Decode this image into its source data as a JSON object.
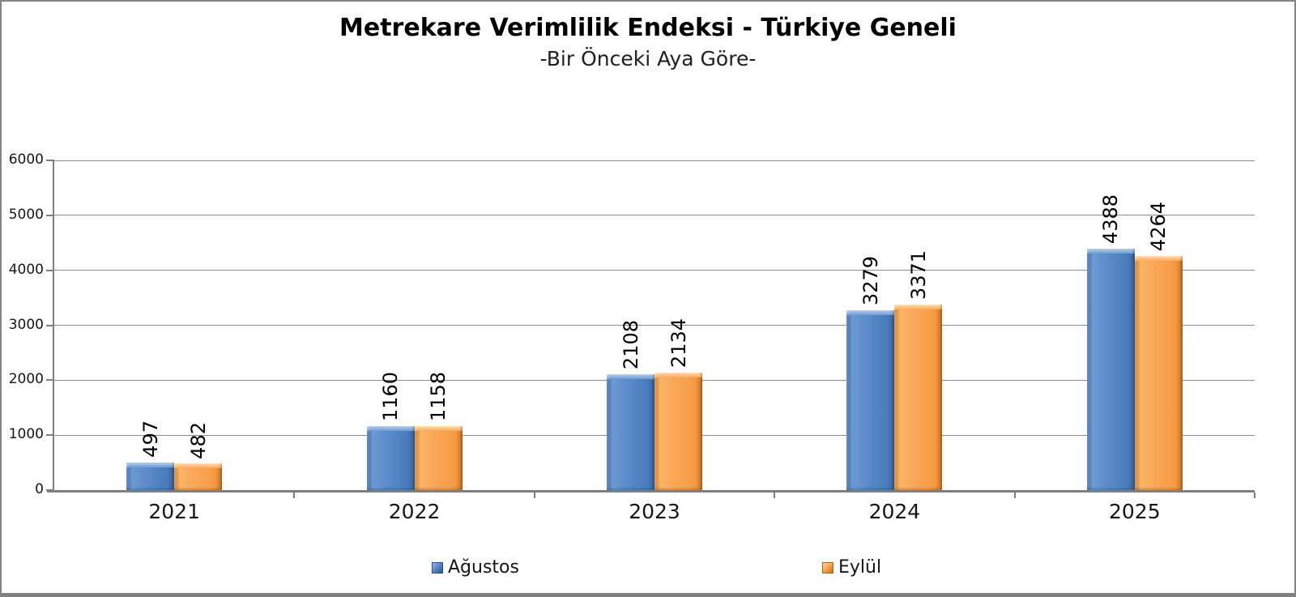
{
  "chart_data": {
    "type": "bar",
    "title": "Metrekare Verimlilik Endeksi - Türkiye Geneli",
    "subtitle": "-Bir Önceki Aya Göre-",
    "categories": [
      "2021",
      "2022",
      "2023",
      "2024",
      "2025"
    ],
    "series": [
      {
        "name": "Ağustos",
        "color": "#5585C5",
        "values": [
          497,
          1160,
          2108,
          3279,
          4388
        ]
      },
      {
        "name": "Eylül",
        "color": "#F9A24C",
        "values": [
          482,
          1158,
          2134,
          3371,
          4264
        ]
      }
    ],
    "xlabel": "",
    "ylabel": "",
    "ylim": [
      0,
      6000
    ],
    "ytick_step": 1000,
    "yticks": [
      "0",
      "1000",
      "2000",
      "3000",
      "4000",
      "5000",
      "6000"
    ],
    "grid": true,
    "legend_position": "bottom",
    "value_label_style": "rotated-90-bottom-to-top",
    "colors": {
      "gridline": "#8C8C8C",
      "axis": "#7F7F7F",
      "frame_border": "#808080",
      "background": "#FFFFFF",
      "text": "#000000"
    }
  }
}
